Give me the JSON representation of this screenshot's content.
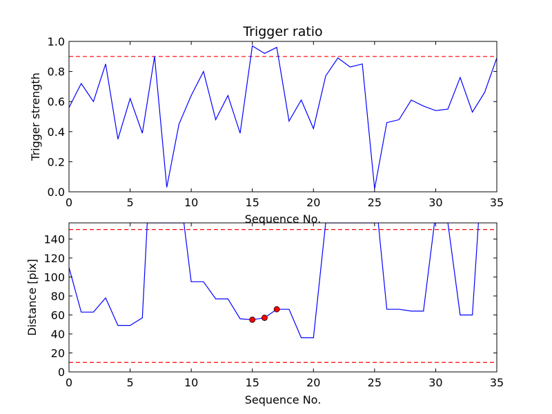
{
  "chart_data": [
    {
      "type": "line",
      "title": "Trigger ratio",
      "xlabel": "Sequence No.",
      "ylabel": "Trigger strength",
      "xlim": [
        0,
        35
      ],
      "ylim": [
        0,
        1.0
      ],
      "xticks": [
        0,
        5,
        10,
        15,
        20,
        25,
        30,
        35
      ],
      "yticks": [
        0.0,
        0.2,
        0.4,
        0.6,
        0.8,
        1.0
      ],
      "xtick_labels": [
        "0",
        "5",
        "10",
        "15",
        "20",
        "25",
        "30",
        "35"
      ],
      "ytick_labels": [
        "0.0",
        "0.2",
        "0.4",
        "0.6",
        "0.8",
        "1.0"
      ],
      "grid": false,
      "line_color": "#0000ff",
      "threshold_color": "#ff0000",
      "thresholds": [
        0.9
      ],
      "series": [
        {
          "x": [
            0,
            1,
            2,
            3,
            4,
            5,
            6,
            7,
            8,
            9,
            10,
            11,
            12,
            13,
            14,
            15,
            16,
            17,
            18,
            19,
            20,
            21,
            22,
            23,
            24,
            25,
            26,
            27,
            28,
            29,
            30,
            31,
            32,
            33,
            34,
            35
          ],
          "values": [
            0.56,
            0.72,
            0.6,
            0.85,
            0.35,
            0.62,
            0.39,
            0.9,
            0.03,
            0.45,
            0.64,
            0.8,
            0.48,
            0.64,
            0.39,
            0.97,
            0.92,
            0.96,
            0.47,
            0.61,
            0.42,
            0.77,
            0.89,
            0.83,
            0.85,
            0.02,
            0.46,
            0.48,
            0.61,
            0.57,
            0.54,
            0.55,
            0.76,
            0.53,
            0.66,
            0.89
          ]
        }
      ]
    },
    {
      "type": "line",
      "title": "",
      "xlabel": "Sequence No.",
      "ylabel": "Distance [pix]",
      "xlim": [
        0,
        35
      ],
      "ylim": [
        0,
        157
      ],
      "xticks": [
        0,
        5,
        10,
        15,
        20,
        25,
        30,
        35
      ],
      "yticks": [
        0,
        20,
        40,
        60,
        80,
        100,
        120,
        140
      ],
      "xtick_labels": [
        "0",
        "5",
        "10",
        "15",
        "20",
        "25",
        "30",
        "35"
      ],
      "ytick_labels": [
        "0",
        "20",
        "40",
        "60",
        "80",
        "100",
        "120",
        "140"
      ],
      "grid": false,
      "line_color": "#0000ff",
      "threshold_color": "#ff0000",
      "marker_color": "#ff0000",
      "thresholds": [
        150,
        10
      ],
      "series": [
        {
          "x": [
            0,
            1,
            2,
            3,
            4,
            5,
            6,
            6.4,
            9.4,
            10,
            11,
            12,
            13,
            14,
            15,
            16,
            17,
            18,
            19,
            20,
            21,
            25.3,
            26,
            27,
            28,
            29,
            29.9,
            31,
            32,
            33,
            33.5
          ],
          "values": [
            110,
            63,
            63,
            78,
            49,
            49,
            57,
            157,
            157,
            95,
            95,
            77,
            77,
            56,
            55,
            57,
            66,
            66,
            36,
            36,
            157,
            157,
            66,
            66,
            64,
            64,
            157,
            157,
            60,
            60,
            157
          ]
        }
      ],
      "markers": [
        {
          "x": 15,
          "y": 55
        },
        {
          "x": 16,
          "y": 57
        },
        {
          "x": 17,
          "y": 66
        }
      ]
    }
  ]
}
